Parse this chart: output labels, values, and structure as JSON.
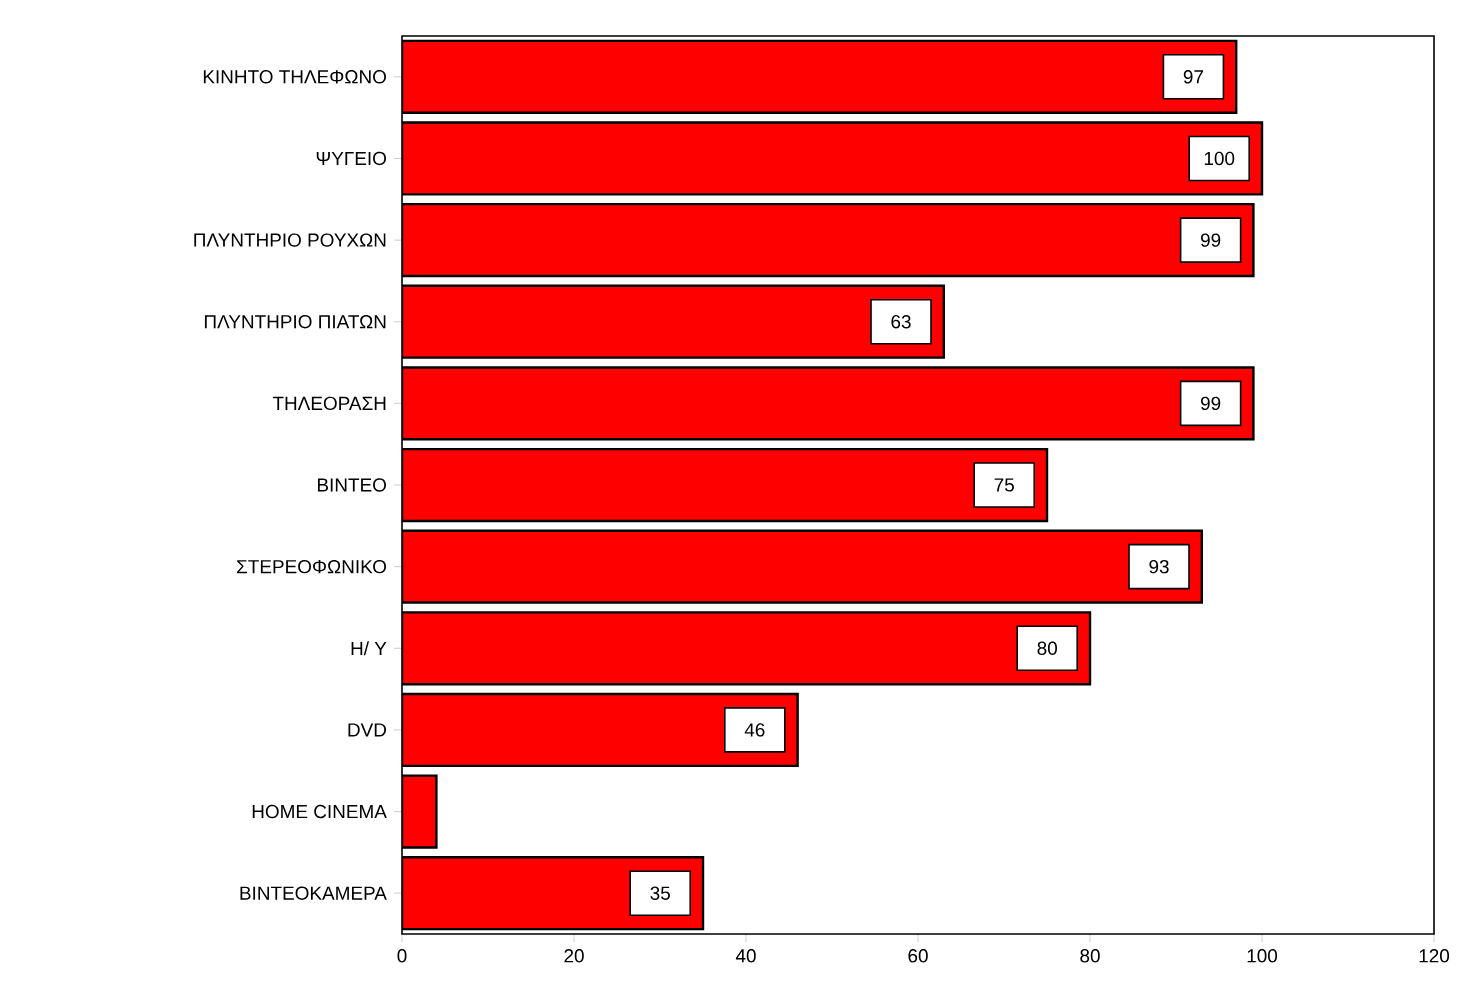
{
  "chart_data": {
    "type": "bar",
    "orientation": "horizontal",
    "categories": [
      "ΚΙΝΗΤΟ ΤΗΛΕΦΩΝΟ",
      "ΨΥΓΕΙΟ",
      "ΠΛΥΝΤΗΡΙΟ ΡΟΥΧΩΝ",
      "ΠΛΥΝΤΗΡΙΟ ΠΙΑΤΩΝ",
      "ΤΗΛΕΟΡΑΣΗ",
      "ΒΙΝΤΕΟ",
      "ΣΤΕΡΕΟΦΩΝΙΚΟ",
      "Η/ Υ",
      "DVD",
      "HOME CINEMA",
      "ΒΙΝΤΕΟΚΑΜΕΡΑ"
    ],
    "values": [
      97,
      100,
      99,
      63,
      99,
      75,
      93,
      80,
      46,
      4,
      35
    ],
    "value_labels": [
      "97",
      "100",
      "99",
      "63",
      "99",
      "75",
      "93",
      "80",
      "46",
      null,
      "35"
    ],
    "color": "#ff0000",
    "xlim": [
      0,
      120
    ],
    "xticks": [
      0,
      20,
      40,
      60,
      80,
      100,
      120
    ]
  }
}
